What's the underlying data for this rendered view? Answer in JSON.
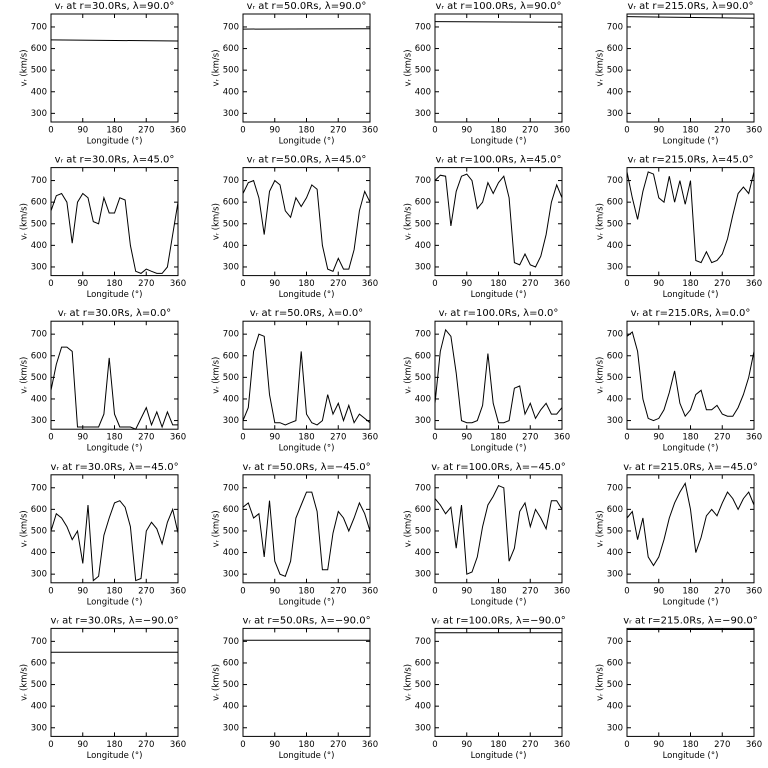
{
  "chart_data": [
    {
      "type": "line",
      "title": "vᵣ at r=30.0Rs, λ=90.0°",
      "x_label": "Longitude (°)",
      "y_label": "vᵣ (km/s)",
      "x": [
        0,
        360
      ],
      "values": [
        640,
        635
      ],
      "xlim": [
        0,
        360
      ],
      "ylim": [
        260,
        760
      ],
      "xticks": [
        0,
        90,
        180,
        270,
        360
      ],
      "yticks": [
        300,
        400,
        500,
        600,
        700
      ],
      "color": "#000000"
    },
    {
      "type": "line",
      "title": "vᵣ at r=50.0Rs, λ=90.0°",
      "x_label": "Longitude (°)",
      "y_label": "vᵣ (km/s)",
      "x": [
        0,
        360
      ],
      "values": [
        690,
        692
      ],
      "xlim": [
        0,
        360
      ],
      "ylim": [
        260,
        760
      ],
      "xticks": [
        0,
        90,
        180,
        270,
        360
      ],
      "yticks": [
        300,
        400,
        500,
        600,
        700
      ],
      "color": "#000000"
    },
    {
      "type": "line",
      "title": "vᵣ at r=100.0Rs, λ=90.0°",
      "x_label": "Longitude (°)",
      "y_label": "vᵣ (km/s)",
      "x": [
        0,
        360
      ],
      "values": [
        725,
        722
      ],
      "xlim": [
        0,
        360
      ],
      "ylim": [
        260,
        760
      ],
      "xticks": [
        0,
        90,
        180,
        270,
        360
      ],
      "yticks": [
        300,
        400,
        500,
        600,
        700
      ],
      "color": "#000000"
    },
    {
      "type": "line",
      "title": "vᵣ at r=215.0Rs, λ=90.0°",
      "x_label": "Longitude (°)",
      "y_label": "vᵣ (km/s)",
      "x": [
        0,
        360
      ],
      "values": [
        748,
        740
      ],
      "xlim": [
        0,
        360
      ],
      "ylim": [
        260,
        760
      ],
      "xticks": [
        0,
        90,
        180,
        270,
        360
      ],
      "yticks": [
        300,
        400,
        500,
        600,
        700
      ],
      "color": "#000000"
    },
    {
      "type": "line",
      "title": "vᵣ at r=30.0Rs, λ=45.0°",
      "x_label": "Longitude (°)",
      "y_label": "vᵣ (km/s)",
      "x": [
        0,
        15,
        30,
        45,
        60,
        75,
        90,
        105,
        120,
        135,
        150,
        165,
        180,
        195,
        210,
        225,
        240,
        255,
        270,
        285,
        300,
        315,
        330,
        345,
        360
      ],
      "values": [
        560,
        630,
        640,
        600,
        410,
        600,
        640,
        620,
        510,
        500,
        620,
        550,
        550,
        620,
        610,
        400,
        280,
        270,
        290,
        280,
        270,
        270,
        300,
        450,
        600
      ],
      "xlim": [
        0,
        360
      ],
      "ylim": [
        260,
        760
      ],
      "xticks": [
        0,
        90,
        180,
        270,
        360
      ],
      "yticks": [
        300,
        400,
        500,
        600,
        700
      ],
      "color": "#000000"
    },
    {
      "type": "line",
      "title": "vᵣ at r=50.0Rs, λ=45.0°",
      "x_label": "Longitude (°)",
      "y_label": "vᵣ (km/s)",
      "x": [
        0,
        15,
        30,
        45,
        60,
        75,
        90,
        105,
        120,
        135,
        150,
        165,
        180,
        195,
        210,
        225,
        240,
        255,
        270,
        285,
        300,
        315,
        330,
        345,
        360
      ],
      "values": [
        640,
        690,
        700,
        620,
        450,
        650,
        700,
        680,
        560,
        530,
        620,
        580,
        620,
        680,
        660,
        400,
        290,
        280,
        340,
        290,
        290,
        380,
        560,
        650,
        600
      ],
      "xlim": [
        0,
        360
      ],
      "ylim": [
        260,
        760
      ],
      "xticks": [
        0,
        90,
        180,
        270,
        360
      ],
      "yticks": [
        300,
        400,
        500,
        600,
        700
      ],
      "color": "#000000"
    },
    {
      "type": "line",
      "title": "vᵣ at r=100.0Rs, λ=45.0°",
      "x_label": "Longitude (°)",
      "y_label": "vᵣ (km/s)",
      "x": [
        0,
        15,
        30,
        45,
        60,
        75,
        90,
        105,
        120,
        135,
        150,
        165,
        180,
        195,
        210,
        225,
        240,
        255,
        270,
        285,
        300,
        315,
        330,
        345,
        360
      ],
      "values": [
        700,
        725,
        720,
        490,
        650,
        720,
        730,
        700,
        570,
        600,
        690,
        640,
        690,
        720,
        620,
        320,
        310,
        360,
        310,
        300,
        350,
        450,
        600,
        680,
        620
      ],
      "xlim": [
        0,
        360
      ],
      "ylim": [
        260,
        760
      ],
      "xticks": [
        0,
        90,
        180,
        270,
        360
      ],
      "yticks": [
        300,
        400,
        500,
        600,
        700
      ],
      "color": "#000000"
    },
    {
      "type": "line",
      "title": "vᵣ at r=215.0Rs, λ=45.0°",
      "x_label": "Longitude (°)",
      "y_label": "vᵣ (km/s)",
      "x": [
        0,
        15,
        30,
        45,
        60,
        75,
        90,
        105,
        120,
        135,
        150,
        165,
        180,
        195,
        210,
        225,
        240,
        255,
        270,
        285,
        300,
        315,
        330,
        345,
        360
      ],
      "values": [
        740,
        620,
        520,
        650,
        740,
        730,
        620,
        600,
        720,
        600,
        700,
        590,
        700,
        330,
        320,
        370,
        320,
        330,
        360,
        430,
        540,
        640,
        670,
        640,
        740
      ],
      "xlim": [
        0,
        360
      ],
      "ylim": [
        260,
        760
      ],
      "xticks": [
        0,
        90,
        180,
        270,
        360
      ],
      "yticks": [
        300,
        400,
        500,
        600,
        700
      ],
      "color": "#000000"
    },
    {
      "type": "line",
      "title": "vᵣ at r=30.0Rs, λ=0.0°",
      "x_label": "Longitude (°)",
      "y_label": "vᵣ (km/s)",
      "x": [
        0,
        15,
        30,
        45,
        60,
        75,
        90,
        105,
        120,
        135,
        150,
        165,
        180,
        195,
        210,
        225,
        240,
        255,
        270,
        285,
        300,
        315,
        330,
        345,
        360
      ],
      "values": [
        440,
        560,
        640,
        640,
        620,
        270,
        270,
        270,
        270,
        270,
        330,
        590,
        330,
        270,
        270,
        270,
        260,
        310,
        360,
        280,
        340,
        270,
        340,
        280,
        280
      ],
      "xlim": [
        0,
        360
      ],
      "ylim": [
        260,
        760
      ],
      "xticks": [
        0,
        90,
        180,
        270,
        360
      ],
      "yticks": [
        300,
        400,
        500,
        600,
        700
      ],
      "color": "#000000"
    },
    {
      "type": "line",
      "title": "vᵣ at r=50.0Rs, λ=0.0°",
      "x_label": "Longitude (°)",
      "y_label": "vᵣ (km/s)",
      "x": [
        0,
        15,
        30,
        45,
        60,
        75,
        90,
        105,
        120,
        135,
        150,
        165,
        180,
        195,
        210,
        225,
        240,
        255,
        270,
        285,
        300,
        315,
        330,
        345,
        360
      ],
      "values": [
        300,
        360,
        620,
        700,
        690,
        420,
        290,
        290,
        280,
        290,
        300,
        620,
        330,
        290,
        280,
        300,
        420,
        330,
        380,
        300,
        370,
        290,
        330,
        310,
        290
      ],
      "xlim": [
        0,
        360
      ],
      "ylim": [
        260,
        760
      ],
      "xticks": [
        0,
        90,
        180,
        270,
        360
      ],
      "yticks": [
        300,
        400,
        500,
        600,
        700
      ],
      "color": "#000000"
    },
    {
      "type": "line",
      "title": "vᵣ at r=100.0Rs, λ=0.0°",
      "x_label": "Longitude (°)",
      "y_label": "vᵣ (km/s)",
      "x": [
        0,
        15,
        30,
        45,
        60,
        75,
        90,
        105,
        120,
        135,
        150,
        165,
        180,
        195,
        210,
        225,
        240,
        255,
        270,
        285,
        300,
        315,
        330,
        345,
        360
      ],
      "values": [
        380,
        620,
        720,
        690,
        520,
        300,
        290,
        290,
        300,
        370,
        610,
        380,
        290,
        290,
        300,
        450,
        460,
        330,
        380,
        310,
        350,
        380,
        330,
        330,
        360
      ],
      "xlim": [
        0,
        360
      ],
      "ylim": [
        260,
        760
      ],
      "xticks": [
        0,
        90,
        180,
        270,
        360
      ],
      "yticks": [
        300,
        400,
        500,
        600,
        700
      ],
      "color": "#000000"
    },
    {
      "type": "line",
      "title": "vᵣ at r=215.0Rs, λ=0.0°",
      "x_label": "Longitude (°)",
      "y_label": "vᵣ (km/s)",
      "x": [
        0,
        15,
        30,
        45,
        60,
        75,
        90,
        105,
        120,
        135,
        150,
        165,
        180,
        195,
        210,
        225,
        240,
        255,
        270,
        285,
        300,
        315,
        330,
        345,
        360
      ],
      "values": [
        690,
        710,
        620,
        400,
        310,
        300,
        310,
        350,
        430,
        530,
        380,
        320,
        350,
        420,
        440,
        350,
        350,
        370,
        330,
        320,
        320,
        360,
        420,
        500,
        620
      ],
      "xlim": [
        0,
        360
      ],
      "ylim": [
        260,
        760
      ],
      "xticks": [
        0,
        90,
        180,
        270,
        360
      ],
      "yticks": [
        300,
        400,
        500,
        600,
        700
      ],
      "color": "#000000"
    },
    {
      "type": "line",
      "title": "vᵣ at r=30.0Rs, λ=−45.0°",
      "x_label": "Longitude (°)",
      "y_label": "vᵣ (km/s)",
      "x": [
        0,
        15,
        30,
        45,
        60,
        75,
        90,
        105,
        120,
        135,
        150,
        165,
        180,
        195,
        210,
        225,
        240,
        255,
        270,
        285,
        300,
        315,
        330,
        345,
        360
      ],
      "values": [
        500,
        580,
        560,
        520,
        460,
        500,
        350,
        620,
        270,
        290,
        480,
        560,
        630,
        640,
        610,
        520,
        270,
        280,
        500,
        540,
        510,
        440,
        540,
        600,
        490
      ],
      "xlim": [
        0,
        360
      ],
      "ylim": [
        260,
        760
      ],
      "xticks": [
        0,
        90,
        180,
        270,
        360
      ],
      "yticks": [
        300,
        400,
        500,
        600,
        700
      ],
      "color": "#000000"
    },
    {
      "type": "line",
      "title": "vᵣ at r=50.0Rs, λ=−45.0°",
      "x_label": "Longitude (°)",
      "y_label": "vᵣ (km/s)",
      "x": [
        0,
        15,
        30,
        45,
        60,
        75,
        90,
        105,
        120,
        135,
        150,
        165,
        180,
        195,
        210,
        225,
        240,
        255,
        270,
        285,
        300,
        315,
        330,
        345,
        360
      ],
      "values": [
        610,
        630,
        560,
        580,
        380,
        640,
        360,
        300,
        290,
        360,
        560,
        620,
        680,
        680,
        590,
        320,
        320,
        490,
        590,
        560,
        500,
        560,
        630,
        580,
        500
      ],
      "xlim": [
        0,
        360
      ],
      "ylim": [
        260,
        760
      ],
      "xticks": [
        0,
        90,
        180,
        270,
        360
      ],
      "yticks": [
        300,
        400,
        500,
        600,
        700
      ],
      "color": "#000000"
    },
    {
      "type": "line",
      "title": "vᵣ at r=100.0Rs, λ=−45.0°",
      "x_label": "Longitude (°)",
      "y_label": "vᵣ (km/s)",
      "x": [
        0,
        15,
        30,
        45,
        60,
        75,
        90,
        105,
        120,
        135,
        150,
        165,
        180,
        195,
        210,
        225,
        240,
        255,
        270,
        285,
        300,
        315,
        330,
        345,
        360
      ],
      "values": [
        650,
        620,
        580,
        610,
        420,
        620,
        300,
        310,
        380,
        520,
        620,
        660,
        710,
        700,
        360,
        420,
        590,
        630,
        520,
        600,
        560,
        510,
        640,
        640,
        600
      ],
      "xlim": [
        0,
        360
      ],
      "ylim": [
        260,
        760
      ],
      "xticks": [
        0,
        90,
        180,
        270,
        360
      ],
      "yticks": [
        300,
        400,
        500,
        600,
        700
      ],
      "color": "#000000"
    },
    {
      "type": "line",
      "title": "vᵣ at r=215.0Rs, λ=−45.0°",
      "x_label": "Longitude (°)",
      "y_label": "vᵣ (km/s)",
      "x": [
        0,
        15,
        30,
        45,
        60,
        75,
        90,
        105,
        120,
        135,
        150,
        165,
        180,
        195,
        210,
        225,
        240,
        255,
        270,
        285,
        300,
        315,
        330,
        345,
        360
      ],
      "values": [
        560,
        590,
        460,
        560,
        380,
        340,
        380,
        460,
        560,
        630,
        680,
        720,
        600,
        400,
        470,
        570,
        600,
        570,
        630,
        680,
        650,
        600,
        650,
        680,
        620
      ],
      "xlim": [
        0,
        360
      ],
      "ylim": [
        260,
        760
      ],
      "xticks": [
        0,
        90,
        180,
        270,
        360
      ],
      "yticks": [
        300,
        400,
        500,
        600,
        700
      ],
      "color": "#000000"
    },
    {
      "type": "line",
      "title": "vᵣ at r=30.0Rs, λ=−90.0°",
      "x_label": "Longitude (°)",
      "y_label": "vᵣ (km/s)",
      "x": [
        0,
        360
      ],
      "values": [
        650,
        650
      ],
      "xlim": [
        0,
        360
      ],
      "ylim": [
        260,
        760
      ],
      "xticks": [
        0,
        90,
        180,
        270,
        360
      ],
      "yticks": [
        300,
        400,
        500,
        600,
        700
      ],
      "color": "#000000"
    },
    {
      "type": "line",
      "title": "vᵣ at r=50.0Rs, λ=−90.0°",
      "x_label": "Longitude (°)",
      "y_label": "vᵣ (km/s)",
      "x": [
        0,
        360
      ],
      "values": [
        705,
        705
      ],
      "xlim": [
        0,
        360
      ],
      "ylim": [
        260,
        760
      ],
      "xticks": [
        0,
        90,
        180,
        270,
        360
      ],
      "yticks": [
        300,
        400,
        500,
        600,
        700
      ],
      "color": "#000000"
    },
    {
      "type": "line",
      "title": "vᵣ at r=100.0Rs, λ=−90.0°",
      "x_label": "Longitude (°)",
      "y_label": "vᵣ (km/s)",
      "x": [
        0,
        360
      ],
      "values": [
        740,
        740
      ],
      "xlim": [
        0,
        360
      ],
      "ylim": [
        260,
        760
      ],
      "xticks": [
        0,
        90,
        180,
        270,
        360
      ],
      "yticks": [
        300,
        400,
        500,
        600,
        700
      ],
      "color": "#000000"
    },
    {
      "type": "line",
      "title": "vᵣ at r=215.0Rs, λ=−90.0°",
      "x_label": "Longitude (°)",
      "y_label": "vᵣ (km/s)",
      "x": [
        0,
        360
      ],
      "values": [
        755,
        755
      ],
      "xlim": [
        0,
        360
      ],
      "ylim": [
        260,
        760
      ],
      "xticks": [
        0,
        90,
        180,
        270,
        360
      ],
      "yticks": [
        300,
        400,
        500,
        600,
        700
      ],
      "color": "#000000"
    }
  ]
}
